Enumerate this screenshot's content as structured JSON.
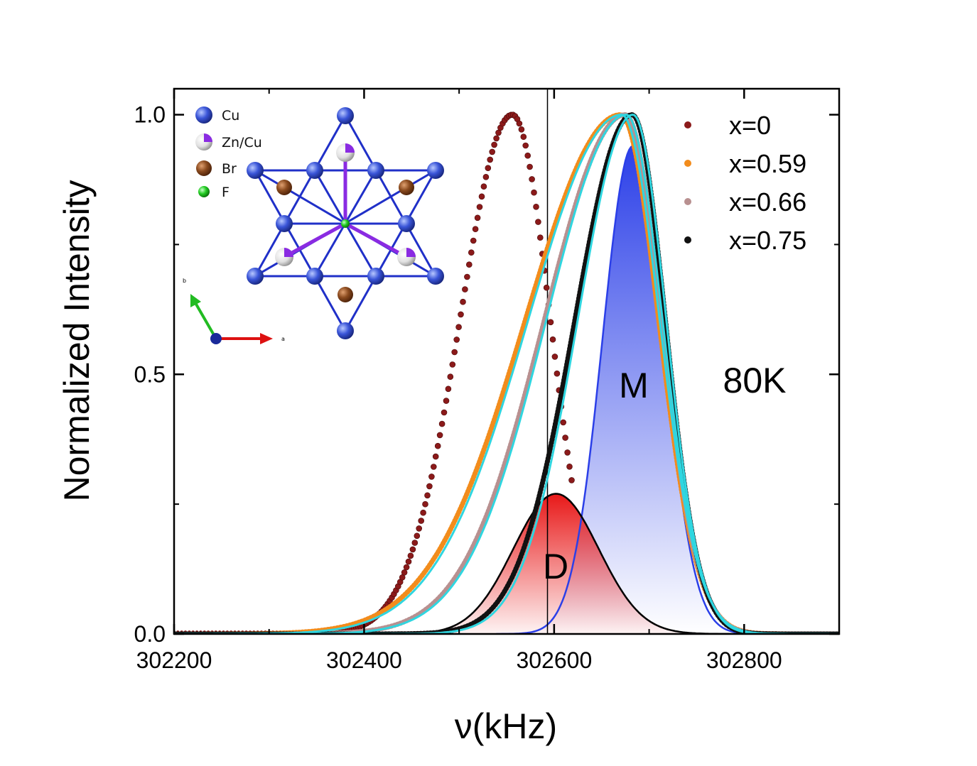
{
  "chart_data": {
    "type": "scatter",
    "xlabel": "ν(kHz)",
    "ylabel": "Normalized Intensity",
    "xlim": [
      302200,
      302900
    ],
    "ylim": [
      0,
      1.05
    ],
    "x_ticks": [
      302200,
      302400,
      302600,
      302800
    ],
    "x_tick_labels": [
      "302200",
      "302400",
      "302600",
      "302800"
    ],
    "y_ticks": [
      0.0,
      0.5,
      1.0
    ],
    "y_tick_labels": [
      "0.0",
      "0.5",
      "1.0"
    ],
    "legend_position": "top-right",
    "vertical_line_x": 302593,
    "series": [
      {
        "name": "x=0",
        "color": "#8b1a1a",
        "peak_x": 302556,
        "left_width": 55,
        "right_width": 40,
        "x_range": [
          302350,
          302620
        ]
      },
      {
        "name": "x=0.59",
        "color": "#f28c1c",
        "peak_x": 302670,
        "left_width": 100,
        "right_width": 40,
        "x_range": [
          302200,
          302900
        ]
      },
      {
        "name": "x=0.66",
        "color": "#b89090",
        "peak_x": 302675,
        "left_width": 85,
        "right_width": 38,
        "x_range": [
          302200,
          302900
        ]
      },
      {
        "name": "x=0.75",
        "color": "#111111",
        "peak_x": 302682,
        "left_width": 60,
        "right_width": 35,
        "x_range": [
          302200,
          302900
        ]
      }
    ],
    "fit_curves": [
      {
        "color": "#2fd6e0",
        "peak_x": 302671,
        "left_width": 98,
        "right_width": 40
      },
      {
        "color": "#2fd6e0",
        "peak_x": 302676,
        "left_width": 84,
        "right_width": 38
      },
      {
        "color": "#2fd6e0",
        "peak_x": 302683,
        "left_width": 58,
        "right_width": 35
      }
    ],
    "components": [
      {
        "label": "M",
        "color": "#2b3fe8",
        "center_x": 302683,
        "amplitude": 0.94,
        "width": 32
      },
      {
        "label": "D",
        "color": "#e82020",
        "center_x": 302602,
        "amplitude": 0.27,
        "width": 45
      }
    ],
    "annotations": [
      "80K",
      "M",
      "D"
    ]
  },
  "inset": {
    "legend": [
      {
        "label": "Cu",
        "color": "#2f4fd8"
      },
      {
        "label": "Zn/Cu",
        "color": "#e8e8e8"
      },
      {
        "label": "Br",
        "color": "#8a4a1e"
      },
      {
        "label": "F",
        "color": "#22cc22"
      }
    ],
    "axis_labels": {
      "b": "b",
      "a": "a"
    }
  }
}
